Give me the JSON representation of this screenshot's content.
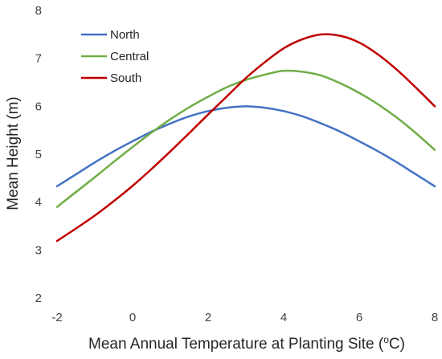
{
  "chart_data": {
    "type": "line",
    "xlabel": "Mean Annual Temperature at Planting Site (",
    "xlabel_super": "o",
    "xlabel_unit": "C)",
    "ylabel": "Mean Height (m)",
    "xlim": [
      -2,
      8
    ],
    "ylim": [
      2,
      8
    ],
    "x_ticks": [
      "-2",
      "0",
      "2",
      "4",
      "6",
      "8"
    ],
    "y_ticks": [
      "2",
      "3",
      "4",
      "5",
      "6",
      "7",
      "8"
    ],
    "grid": false,
    "legend_position": "top-left",
    "series": [
      {
        "name": "North",
        "color": "#4472C4",
        "x": [
          -2,
          -1.5,
          -1,
          -0.5,
          0,
          0.5,
          1,
          1.5,
          2,
          2.5,
          3,
          3.5,
          4,
          4.5,
          5,
          5.5,
          6,
          6.5,
          7,
          7.5,
          8
        ],
        "y": [
          4.33,
          4.58,
          4.83,
          5.06,
          5.27,
          5.47,
          5.64,
          5.79,
          5.9,
          5.97,
          6.0,
          5.97,
          5.9,
          5.79,
          5.64,
          5.47,
          5.27,
          5.06,
          4.83,
          4.58,
          4.33
        ]
      },
      {
        "name": "Central",
        "color": "#70AD47",
        "x": [
          -2,
          -1.5,
          -1,
          -0.5,
          0,
          0.5,
          1,
          1.5,
          2,
          2.5,
          3,
          3.5,
          4,
          4.5,
          5,
          5.5,
          6,
          6.5,
          7,
          7.5,
          8
        ],
        "y": [
          3.9,
          4.21,
          4.52,
          4.84,
          5.15,
          5.45,
          5.73,
          5.98,
          6.2,
          6.4,
          6.55,
          6.66,
          6.74,
          6.72,
          6.64,
          6.48,
          6.28,
          6.04,
          5.76,
          5.44,
          5.09
        ]
      },
      {
        "name": "South",
        "color": "#C00000",
        "x": [
          -2,
          -1.5,
          -1,
          -0.5,
          0,
          0.5,
          1,
          1.5,
          2,
          2.5,
          3,
          3.5,
          4,
          4.5,
          5,
          5.5,
          6,
          6.5,
          7,
          7.5,
          8
        ],
        "y": [
          3.19,
          3.45,
          3.72,
          4.02,
          4.34,
          4.69,
          5.06,
          5.44,
          5.83,
          6.21,
          6.59,
          6.92,
          7.21,
          7.4,
          7.5,
          7.47,
          7.33,
          7.08,
          6.76,
          6.39,
          6.0
        ]
      }
    ]
  }
}
